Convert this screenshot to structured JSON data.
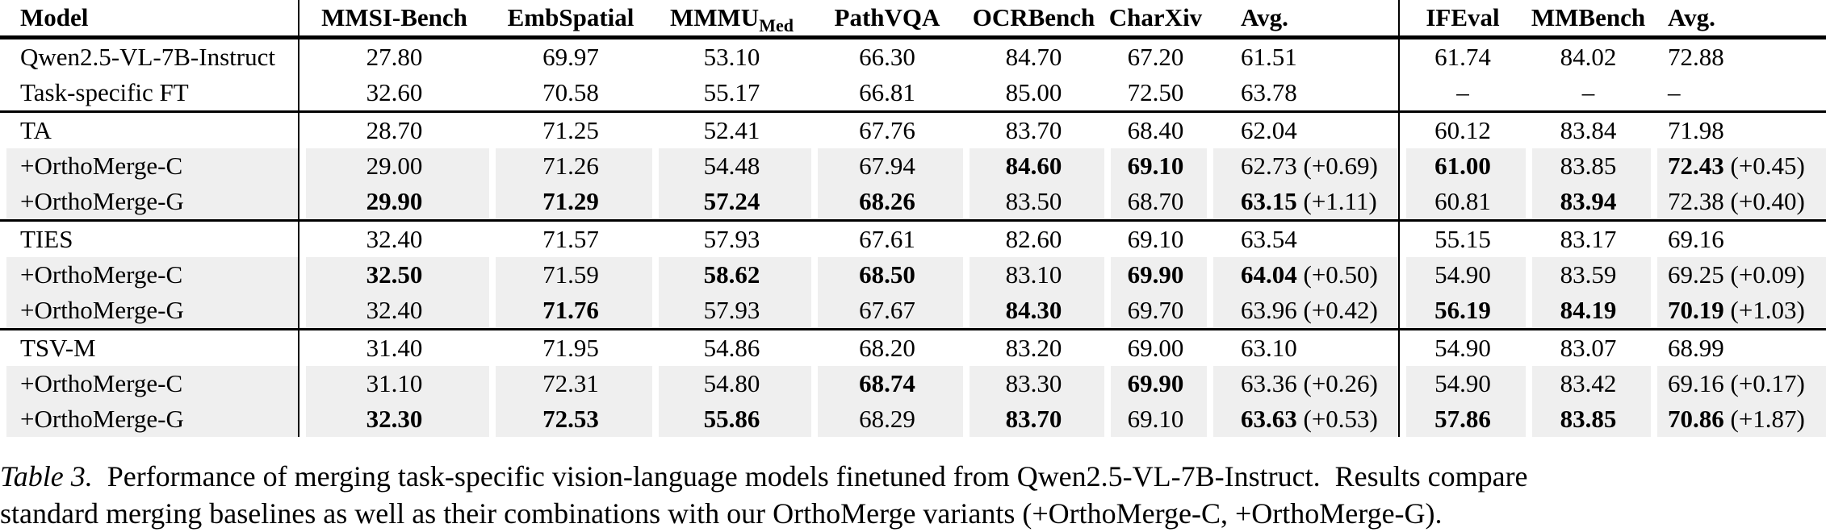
{
  "colors": {
    "row_shade": "#efefef",
    "rule": "#000000",
    "text": "#000000"
  },
  "table": {
    "columns": [
      {
        "key": "model",
        "label": "Model",
        "align": "left",
        "sep_after": true
      },
      {
        "key": "mmsi",
        "label": "MMSI-Bench",
        "align": "center",
        "sep_after": false
      },
      {
        "key": "emb",
        "label": "EmbSpatial",
        "align": "center",
        "sep_after": false
      },
      {
        "key": "mmmu",
        "label": "MMMU",
        "subscript": "Med",
        "align": "center",
        "sep_after": false
      },
      {
        "key": "pathvqa",
        "label": "PathVQA",
        "align": "center",
        "sep_after": false
      },
      {
        "key": "ocr",
        "label": "OCRBench",
        "align": "center",
        "sep_after": false
      },
      {
        "key": "charxiv",
        "label": "CharXiv",
        "align": "center",
        "sep_after": false
      },
      {
        "key": "avg1",
        "label": "Avg.",
        "align": "left",
        "sep_after": true
      },
      {
        "key": "ifeval",
        "label": "IFEval",
        "align": "center",
        "sep_after": false
      },
      {
        "key": "mmbench",
        "label": "MMBench",
        "align": "center",
        "sep_after": false
      },
      {
        "key": "avg2",
        "label": "Avg.",
        "align": "left",
        "sep_after": false
      }
    ],
    "rows": [
      {
        "shaded": false,
        "rule_after": false,
        "cells": [
          "Qwen2.5-VL-7B-Instruct",
          "27.80",
          "69.97",
          "53.10",
          "66.30",
          "84.70",
          "67.20",
          "61.51",
          "61.74",
          "84.02",
          "72.88"
        ]
      },
      {
        "shaded": false,
        "rule_after": true,
        "cells": [
          "Task-specific FT",
          "32.60",
          "70.58",
          "55.17",
          "66.81",
          "85.00",
          "72.50",
          "63.78",
          "–",
          "–",
          "–"
        ]
      },
      {
        "shaded": false,
        "rule_after": false,
        "cells": [
          "TA",
          "28.70",
          "71.25",
          "52.41",
          "67.76",
          "83.70",
          "68.40",
          "62.04",
          "60.12",
          "83.84",
          "71.98"
        ]
      },
      {
        "shaded": true,
        "rule_after": false,
        "cells": [
          "+OrthoMerge-C",
          "29.00",
          "71.26",
          "54.48",
          "67.94",
          {
            "v": "84.60",
            "b": true
          },
          {
            "v": "69.10",
            "b": true
          },
          {
            "v": "62.73",
            "b": false,
            "d": "(+0.69)"
          },
          {
            "v": "61.00",
            "b": true
          },
          "83.85",
          {
            "v": "72.43",
            "b": true,
            "d": "(+0.45)"
          }
        ]
      },
      {
        "shaded": true,
        "rule_after": true,
        "cells": [
          "+OrthoMerge-G",
          {
            "v": "29.90",
            "b": true
          },
          {
            "v": "71.29",
            "b": true
          },
          {
            "v": "57.24",
            "b": true
          },
          {
            "v": "68.26",
            "b": true
          },
          "83.50",
          "68.70",
          {
            "v": "63.15",
            "b": true,
            "d": "(+1.11)"
          },
          "60.81",
          {
            "v": "83.94",
            "b": true
          },
          {
            "v": "72.38",
            "b": false,
            "d": "(+0.40)"
          }
        ]
      },
      {
        "shaded": false,
        "rule_after": false,
        "cells": [
          "TIES",
          "32.40",
          "71.57",
          "57.93",
          "67.61",
          "82.60",
          "69.10",
          "63.54",
          "55.15",
          "83.17",
          "69.16"
        ]
      },
      {
        "shaded": true,
        "rule_after": false,
        "cells": [
          "+OrthoMerge-C",
          {
            "v": "32.50",
            "b": true
          },
          "71.59",
          {
            "v": "58.62",
            "b": true
          },
          {
            "v": "68.50",
            "b": true
          },
          "83.10",
          {
            "v": "69.90",
            "b": true
          },
          {
            "v": "64.04",
            "b": true,
            "d": "(+0.50)"
          },
          "54.90",
          "83.59",
          {
            "v": "69.25",
            "b": false,
            "d": "(+0.09)"
          }
        ]
      },
      {
        "shaded": true,
        "rule_after": true,
        "cells": [
          "+OrthoMerge-G",
          "32.40",
          {
            "v": "71.76",
            "b": true
          },
          "57.93",
          "67.67",
          {
            "v": "84.30",
            "b": true
          },
          "69.70",
          {
            "v": "63.96",
            "b": false,
            "d": "(+0.42)"
          },
          {
            "v": "56.19",
            "b": true
          },
          {
            "v": "84.19",
            "b": true
          },
          {
            "v": "70.19",
            "b": true,
            "d": "(+1.03)"
          }
        ]
      },
      {
        "shaded": false,
        "rule_after": false,
        "cells": [
          "TSV-M",
          "31.40",
          "71.95",
          "54.86",
          "68.20",
          "83.20",
          "69.00",
          "63.10",
          "54.90",
          "83.07",
          "68.99"
        ]
      },
      {
        "shaded": true,
        "rule_after": false,
        "cells": [
          "+OrthoMerge-C",
          "31.10",
          "72.31",
          "54.80",
          {
            "v": "68.74",
            "b": true
          },
          "83.30",
          {
            "v": "69.90",
            "b": true
          },
          {
            "v": "63.36",
            "b": false,
            "d": "(+0.26)"
          },
          "54.90",
          "83.42",
          {
            "v": "69.16",
            "b": false,
            "d": "(+0.17)"
          }
        ]
      },
      {
        "shaded": true,
        "rule_after": false,
        "cells": [
          "+OrthoMerge-G",
          {
            "v": "32.30",
            "b": true
          },
          {
            "v": "72.53",
            "b": true
          },
          {
            "v": "55.86",
            "b": true
          },
          "68.29",
          {
            "v": "83.70",
            "b": true
          },
          "69.10",
          {
            "v": "63.63",
            "b": true,
            "d": "(+0.53)"
          },
          {
            "v": "57.86",
            "b": true
          },
          {
            "v": "83.85",
            "b": true
          },
          {
            "v": "70.86",
            "b": true,
            "d": "(+1.87)"
          }
        ]
      }
    ]
  },
  "caption": {
    "label": "Table 3.",
    "line1": "  Performance of merging task-specific vision-language models finetuned from Qwen2.5-VL-7B-Instruct.  Results compare",
    "line2": "standard merging baselines as well as their combinations with our OrthoMerge variants (+OrthoMerge-C, +OrthoMerge-G)."
  }
}
